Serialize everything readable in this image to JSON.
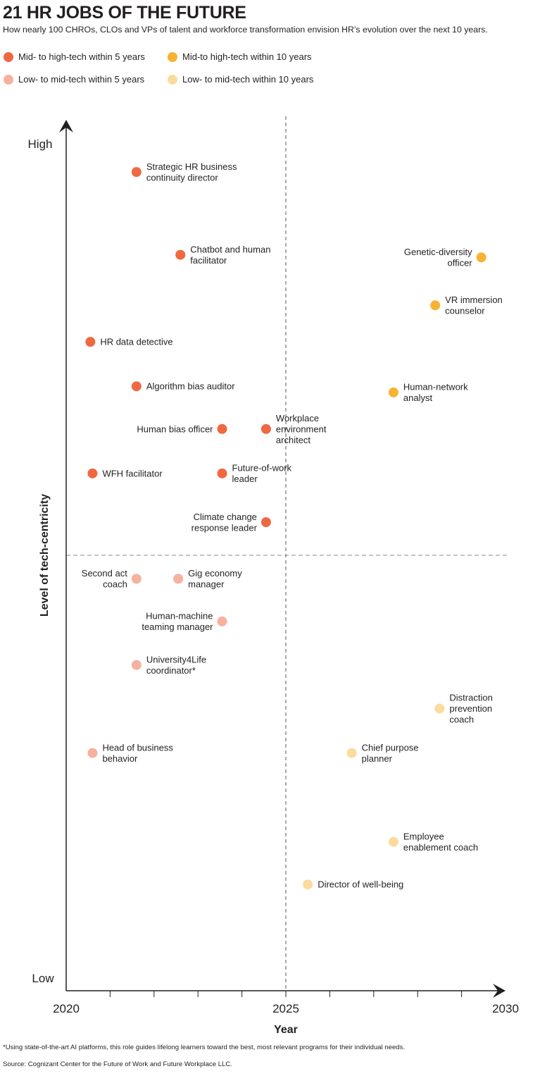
{
  "header": {
    "title": "21 HR JOBS OF THE FUTURE",
    "subtitle": "How nearly 100 CHROs, CLOs and VPs of talent and workforce transformation envision HR’s evolution over the next 10 years."
  },
  "legend": [
    {
      "label": "Mid- to high-tech within 5 years",
      "color": "#ef6840"
    },
    {
      "label": "Mid-to high-tech within 10 years",
      "color": "#f7b331"
    },
    {
      "label": "Low- to mid-tech within 5 years",
      "color": "#f6b19f"
    },
    {
      "label": "Low- to mid-tech within 10 years",
      "color": "#fbdb9e"
    }
  ],
  "footer": {
    "footnote": "*Using state-of-the-art AI platforms, this role guides lifelong learners toward the best, most relevant programs for their individual needs.",
    "source": "Source: Cognizant Center for the Future of Work and Future Workplace LLC."
  },
  "chart_data": {
    "type": "scatter",
    "xlabel": "Year",
    "ylabel": "Level of tech-centricity",
    "x_tick_labels": [
      "2020",
      "2025",
      "2030"
    ],
    "xlim": [
      2020,
      2030
    ],
    "y_tick_labels": {
      "high": "High",
      "low": "Low"
    },
    "ylim": [
      0,
      100
    ],
    "divider": {
      "x": 2025,
      "y": 50
    },
    "series": [
      {
        "name": "Mid- to high-tech within 5 years",
        "color": "#ef6840",
        "points": [
          {
            "x": 2021.6,
            "y": 94,
            "label": [
              "Strategic HR business",
              "continuity director"
            ],
            "side": "right"
          },
          {
            "x": 2022.6,
            "y": 84.5,
            "label": [
              "Chatbot and human",
              "facilitator"
            ],
            "side": "right"
          },
          {
            "x": 2020.55,
            "y": 74.5,
            "label": [
              "HR data detective"
            ],
            "side": "right"
          },
          {
            "x": 2021.6,
            "y": 69.4,
            "label": [
              "Algorithm bias auditor"
            ],
            "side": "right"
          },
          {
            "x": 2023.55,
            "y": 64.5,
            "label": [
              "Human bias officer"
            ],
            "side": "left"
          },
          {
            "x": 2024.55,
            "y": 64.5,
            "label": [
              "Workplace",
              "environment",
              "architect"
            ],
            "side": "right"
          },
          {
            "x": 2020.6,
            "y": 59.4,
            "label": [
              "WFH facilitator"
            ],
            "side": "right"
          },
          {
            "x": 2023.55,
            "y": 59.4,
            "label": [
              "Future-of-work",
              "leader"
            ],
            "side": "right"
          },
          {
            "x": 2024.55,
            "y": 53.8,
            "label": [
              "Climate change",
              "response leader"
            ],
            "side": "left"
          }
        ]
      },
      {
        "name": "Mid-to high-tech within 10 years",
        "color": "#f7b331",
        "points": [
          {
            "x": 2029.45,
            "y": 84.2,
            "label": [
              "Genetic-diversity",
              "officer"
            ],
            "side": "left"
          },
          {
            "x": 2028.4,
            "y": 78.7,
            "label": [
              "VR immersion",
              "counselor"
            ],
            "side": "right"
          },
          {
            "x": 2027.45,
            "y": 68.7,
            "label": [
              "Human-network",
              "analyst"
            ],
            "side": "right"
          }
        ]
      },
      {
        "name": "Low- to mid-tech within 5 years",
        "color": "#f6b19f",
        "points": [
          {
            "x": 2021.6,
            "y": 47.3,
            "label": [
              "Second act",
              "coach"
            ],
            "side": "left"
          },
          {
            "x": 2022.55,
            "y": 47.3,
            "label": [
              "Gig economy",
              "manager"
            ],
            "side": "right"
          },
          {
            "x": 2023.55,
            "y": 42.4,
            "label": [
              "Human-machine",
              "teaming manager"
            ],
            "side": "left"
          },
          {
            "x": 2021.6,
            "y": 37.4,
            "label": [
              "University4Life",
              "coordinator*"
            ],
            "side": "right"
          },
          {
            "x": 2020.6,
            "y": 27.3,
            "label": [
              "Head of business",
              "behavior"
            ],
            "side": "right"
          }
        ]
      },
      {
        "name": "Low- to mid-tech within 10 years",
        "color": "#fbdb9e",
        "points": [
          {
            "x": 2028.5,
            "y": 32.4,
            "label": [
              "Distraction",
              "prevention",
              "coach"
            ],
            "side": "right"
          },
          {
            "x": 2026.5,
            "y": 27.3,
            "label": [
              "Chief purpose",
              "planner"
            ],
            "side": "right"
          },
          {
            "x": 2027.45,
            "y": 17.1,
            "label": [
              "Employee",
              "enablement coach"
            ],
            "side": "right"
          },
          {
            "x": 2025.5,
            "y": 12.2,
            "label": [
              "Director of well-being"
            ],
            "side": "right"
          }
        ]
      }
    ]
  }
}
